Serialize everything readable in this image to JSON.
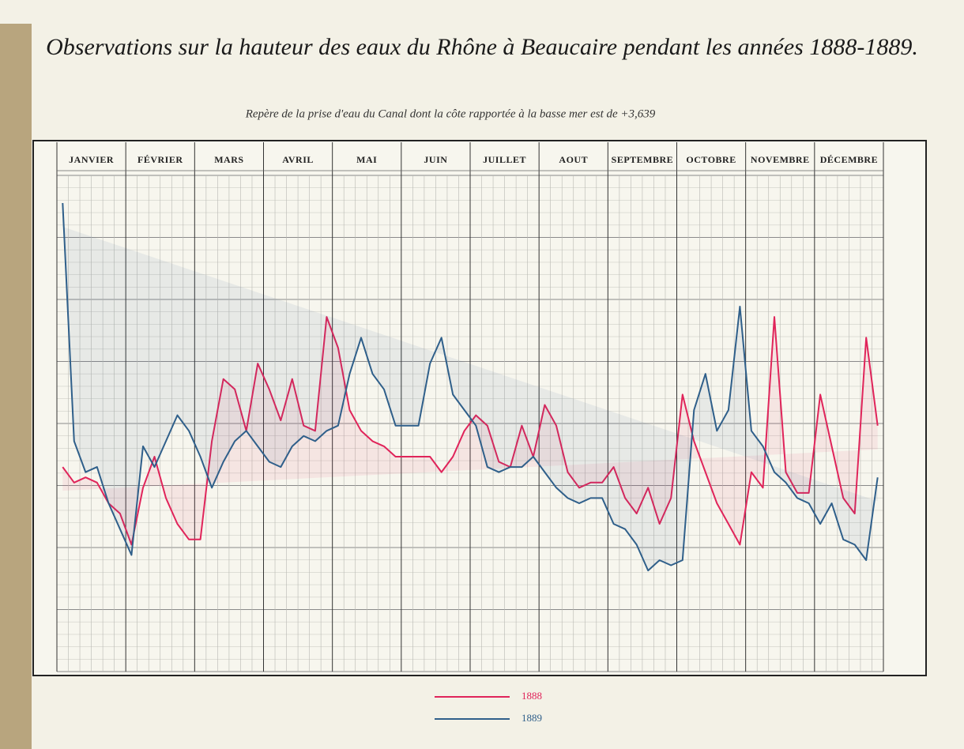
{
  "chart_data": {
    "type": "line",
    "title": "Observations sur la hauteur des eaux du Rhône à Beaucaire pendant les années 1888-1889.",
    "subtitle": "Repère de la prise d'eau du Canal dont la côte rapportée à la basse mer est de +3,639",
    "months": [
      "JANVIER",
      "FÉVRIER",
      "MARS",
      "AVRIL",
      "MAI",
      "JUIN",
      "JUILLET",
      "AOUT",
      "SEPTEMBRE",
      "OCTOBRE",
      "NOVEMBRE",
      "DÉCEMBRE"
    ],
    "ylim": [
      0,
      10
    ],
    "series": [
      {
        "name": "1888",
        "color": "#e0245a",
        "values": [
          3.8,
          3.5,
          3.6,
          3.5,
          3.1,
          2.9,
          2.3,
          3.4,
          4.0,
          3.2,
          2.7,
          2.4,
          2.4,
          4.3,
          5.5,
          5.3,
          4.5,
          5.8,
          5.3,
          4.7,
          5.5,
          4.6,
          4.5,
          6.7,
          6.1,
          4.9,
          4.5,
          4.3,
          4.2,
          4.0,
          4.0,
          4.0,
          4.0,
          3.7,
          4.0,
          4.5,
          4.8,
          4.6,
          3.9,
          3.8,
          4.6,
          4.0,
          5.0,
          4.6,
          3.7,
          3.4,
          3.5,
          3.5,
          3.8,
          3.2,
          2.9,
          3.4,
          2.7,
          3.2,
          5.2,
          4.3,
          3.7,
          3.1,
          2.7,
          2.3,
          3.7,
          3.4,
          6.7,
          3.7,
          3.3,
          3.3,
          5.2,
          4.2,
          3.2,
          2.9,
          6.3,
          4.6
        ]
      },
      {
        "name": "1889",
        "color": "#2f5f8a",
        "values": [
          8.9,
          4.3,
          3.7,
          3.8,
          3.1,
          2.6,
          2.1,
          4.2,
          3.8,
          4.3,
          4.8,
          4.5,
          4.0,
          3.4,
          3.9,
          4.3,
          4.5,
          4.2,
          3.9,
          3.8,
          4.2,
          4.4,
          4.3,
          4.5,
          4.6,
          5.6,
          6.3,
          5.6,
          5.3,
          4.6,
          4.6,
          4.6,
          5.8,
          6.3,
          5.2,
          4.9,
          4.6,
          3.8,
          3.7,
          3.8,
          3.8,
          4.0,
          3.7,
          3.4,
          3.2,
          3.1,
          3.2,
          3.2,
          2.7,
          2.6,
          2.3,
          1.8,
          2.0,
          1.9,
          2.0,
          4.9,
          5.6,
          4.5,
          4.9,
          6.9,
          4.5,
          4.2,
          3.7,
          3.5,
          3.2,
          3.1,
          2.7,
          3.1,
          2.4,
          2.3,
          2.0,
          3.6
        ]
      }
    ]
  }
}
